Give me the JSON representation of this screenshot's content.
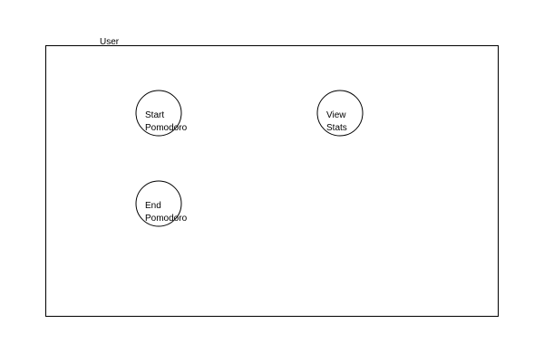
{
  "diagram": {
    "actor": {
      "label": "User"
    },
    "use_cases": [
      {
        "id": "start",
        "lines": [
          "Start",
          "Pomodoro"
        ]
      },
      {
        "id": "stats",
        "lines": [
          "View",
          "Stats"
        ]
      },
      {
        "id": "end",
        "lines": [
          "End",
          "Pomodoro"
        ]
      }
    ],
    "colors": {
      "stroke": "#000000",
      "background": "#ffffff",
      "text": "#000000"
    }
  }
}
